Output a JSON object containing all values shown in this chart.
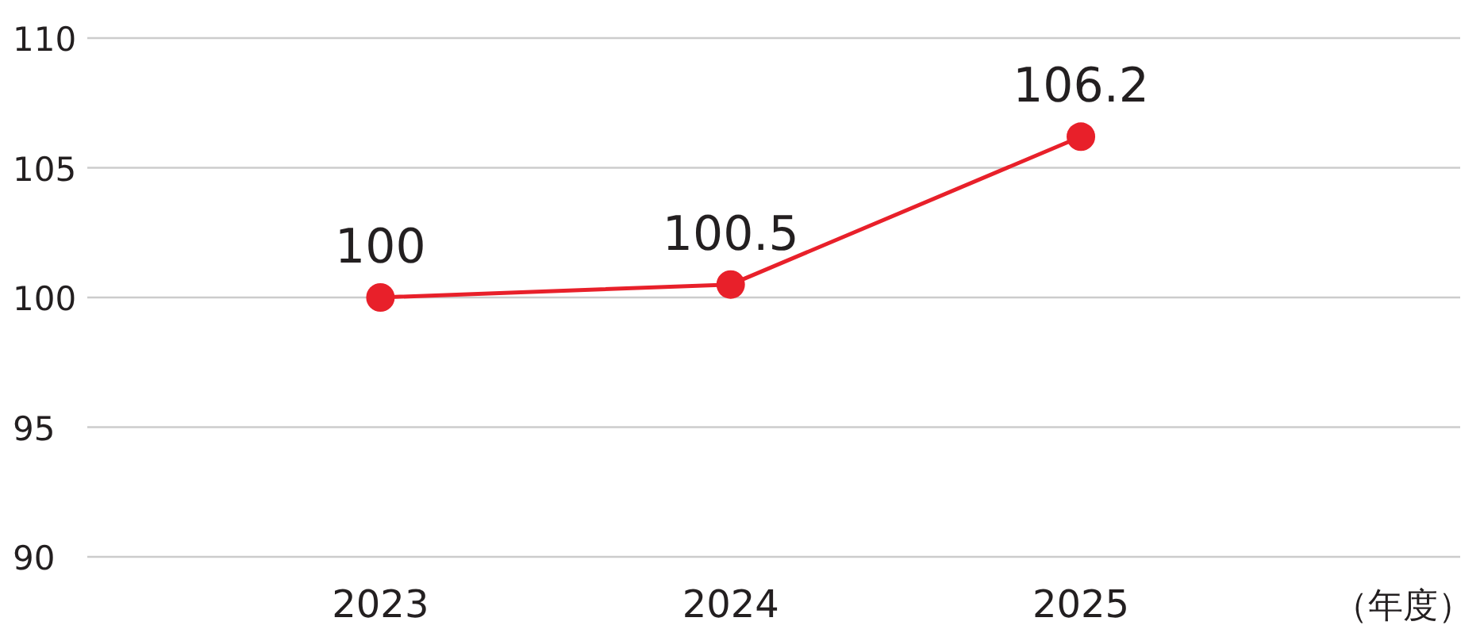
{
  "chart_data": {
    "type": "line",
    "xlabel": "（年度）",
    "categories": [
      "2023",
      "2024",
      "2025"
    ],
    "series": [
      {
        "color": "#e8202a",
        "values": [
          100,
          100.5,
          106.2
        ]
      }
    ],
    "ylim": [
      90,
      110
    ],
    "yticks": [
      90,
      95,
      100,
      105,
      110
    ],
    "grid": "y",
    "marker": "circle",
    "data_labels": true
  }
}
